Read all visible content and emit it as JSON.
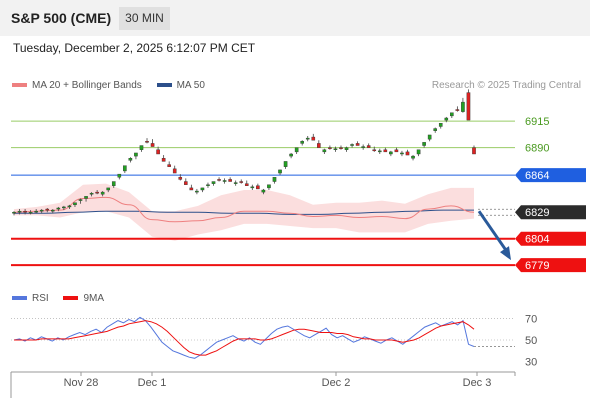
{
  "header": {
    "symbol": "S&P 500 (CME)",
    "timeframe": "30 MIN"
  },
  "datetime": "Tuesday, December 2, 2025 6:12:07 PM CET",
  "credit": "Research © 2025 Trading Central",
  "legend": [
    {
      "label": "MA 20 + Bollinger Bands",
      "color": "#ee8080"
    },
    {
      "label": "MA 50",
      "color": "#2c4f8a"
    }
  ],
  "rsi_legend": [
    {
      "label": "RSI",
      "color": "#5577dd"
    },
    {
      "label": "9MA",
      "color": "#ee1111"
    }
  ],
  "colors": {
    "up": "#22a022",
    "down": "#dd2222",
    "resistance": "#1f5fe0",
    "support": "#ee1111",
    "target_line": "#99cc66",
    "target_label": "#4a9a20",
    "arrow": "#2a5a9a",
    "band_fill": "#fbdede",
    "current": "#2b2b2b"
  },
  "chart_data": [
    {
      "type": "candlestick",
      "x_ticks": [
        "Nov 28",
        "Dec 1",
        "Dec 2",
        "Dec 3"
      ],
      "ylim": [
        6765,
        6935
      ],
      "levels": [
        {
          "label": "6915",
          "value": 6915,
          "kind": "target"
        },
        {
          "label": "6890",
          "value": 6890,
          "kind": "target"
        },
        {
          "label": "6864",
          "value": 6864,
          "kind": "resistance"
        },
        {
          "label": "6829",
          "value": 6829,
          "kind": "current"
        },
        {
          "label": "6804",
          "value": 6804,
          "kind": "support"
        },
        {
          "label": "6779",
          "value": 6779,
          "kind": "support"
        }
      ],
      "close_start": 6828,
      "ohlc_deltas": [
        [
          0,
          2,
          -2,
          1
        ],
        [
          1,
          3,
          -2,
          0
        ],
        [
          0,
          2,
          -3,
          -1
        ],
        [
          -1,
          2,
          -2,
          1
        ],
        [
          1,
          3,
          -1,
          0
        ],
        [
          0,
          2,
          -2,
          1
        ],
        [
          1,
          2,
          -2,
          -1
        ],
        [
          -1,
          1,
          -3,
          1
        ],
        [
          1,
          3,
          -1,
          1
        ],
        [
          1,
          2,
          -2,
          0
        ],
        [
          0,
          2,
          -2,
          1
        ],
        [
          1,
          3,
          -1,
          2
        ],
        [
          2,
          4,
          -1,
          1
        ],
        [
          1,
          3,
          -2,
          2
        ],
        [
          2,
          4,
          0,
          1
        ],
        [
          1,
          3,
          -1,
          -1
        ],
        [
          -1,
          2,
          -3,
          2
        ],
        [
          2,
          4,
          0,
          2
        ],
        [
          2,
          5,
          0,
          4
        ],
        [
          4,
          7,
          2,
          3
        ],
        [
          3,
          6,
          1,
          5
        ],
        [
          5,
          8,
          3,
          2
        ],
        [
          2,
          5,
          -1,
          3
        ],
        [
          3,
          6,
          1,
          4
        ],
        [
          4,
          7,
          2,
          -1
        ],
        [
          -1,
          3,
          -3,
          -3
        ],
        [
          -3,
          0,
          -6,
          -4
        ],
        [
          -4,
          -1,
          -7,
          -3
        ],
        [
          -3,
          0,
          -5,
          -2
        ],
        [
          -2,
          1,
          -4,
          -4
        ],
        [
          -4,
          -1,
          -7,
          -2
        ],
        [
          -2,
          1,
          -4,
          -3
        ],
        [
          -3,
          0,
          -5,
          -2
        ],
        [
          -2,
          1,
          -4,
          1
        ],
        [
          1,
          3,
          -1,
          2
        ],
        [
          2,
          5,
          0,
          1
        ],
        [
          1,
          3,
          -1,
          2
        ],
        [
          2,
          4,
          0,
          -1
        ],
        [
          -1,
          2,
          -3,
          1
        ],
        [
          1,
          3,
          -1,
          -2
        ],
        [
          -2,
          1,
          -4,
          1
        ],
        [
          1,
          3,
          -1,
          -1
        ],
        [
          -1,
          2,
          -3,
          -2
        ],
        [
          -2,
          1,
          -4,
          1
        ],
        [
          1,
          3,
          -2,
          -3
        ],
        [
          -3,
          0,
          -5,
          2
        ],
        [
          2,
          5,
          0,
          3
        ],
        [
          3,
          6,
          1,
          4
        ],
        [
          4,
          7,
          2,
          3
        ],
        [
          3,
          6,
          1,
          5
        ],
        [
          5,
          8,
          3,
          2
        ],
        [
          2,
          5,
          0,
          4
        ],
        [
          4,
          7,
          2,
          2
        ],
        [
          2,
          5,
          0,
          1
        ],
        [
          1,
          4,
          -1,
          -3
        ],
        [
          -3,
          0,
          -6,
          -4
        ],
        [
          -4,
          -1,
          -6,
          2
        ],
        [
          2,
          4,
          0,
          -1
        ],
        [
          -1,
          2,
          -3,
          1
        ],
        [
          1,
          3,
          -1,
          -1
        ],
        [
          -1,
          2,
          -3,
          2
        ],
        [
          2,
          4,
          0,
          1
        ],
        [
          1,
          3,
          -1,
          -2
        ],
        [
          -2,
          1,
          -4,
          1
        ],
        [
          1,
          3,
          -1,
          -2
        ],
        [
          -2,
          1,
          -4,
          -1
        ],
        [
          -1,
          2,
          -3,
          1
        ],
        [
          1,
          3,
          -1,
          -2
        ],
        [
          -2,
          1,
          -4,
          2
        ],
        [
          2,
          4,
          0,
          -2
        ],
        [
          -2,
          1,
          -4,
          1
        ],
        [
          1,
          3,
          -1,
          -3
        ],
        [
          -3,
          0,
          -5,
          2
        ],
        [
          2,
          5,
          0,
          4
        ],
        [
          4,
          7,
          2,
          3
        ],
        [
          3,
          6,
          1,
          4
        ],
        [
          4,
          7,
          2,
          2
        ],
        [
          2,
          5,
          0,
          3
        ],
        [
          3,
          6,
          1,
          2
        ],
        [
          2,
          5,
          0,
          3
        ],
        [
          3,
          6,
          1,
          -1
        ],
        [
          -1,
          12,
          -2,
          9
        ],
        [
          9,
          12,
          6,
          -26
        ],
        [
          -26,
          -24,
          -32,
          -6
        ]
      ],
      "ma20_samples": [
        6829,
        6830,
        6831,
        6842,
        6843,
        6836,
        6822,
        6820,
        6821,
        6824,
        6830,
        6830,
        6828,
        6825,
        6826,
        6824,
        6825,
        6823,
        6832,
        6835,
        6829
      ],
      "ma50_samples": [
        6828,
        6828,
        6829,
        6830,
        6830,
        6829,
        6829,
        6828,
        6828,
        6827,
        6827,
        6828,
        6829,
        6830,
        6831,
        6831
      ],
      "band_upper": [
        6832,
        6834,
        6838,
        6855,
        6856,
        6848,
        6830,
        6830,
        6835,
        6845,
        6850,
        6850,
        6845,
        6836,
        6838,
        6838,
        6840,
        6837,
        6846,
        6852,
        6852
      ],
      "band_lower": [
        6826,
        6826,
        6824,
        6829,
        6830,
        6824,
        6806,
        6802,
        6808,
        6812,
        6818,
        6818,
        6816,
        6814,
        6814,
        6810,
        6810,
        6810,
        6818,
        6821,
        6823
      ],
      "forecast_from": 6830,
      "forecast_to": 6779
    },
    {
      "type": "line",
      "title": "RSI",
      "y_ticks": [
        70,
        50,
        30
      ],
      "ylim": [
        24,
        76
      ],
      "rsi_series": [
        50,
        51,
        49,
        52,
        50,
        53,
        51,
        49,
        52,
        50,
        53,
        55,
        57,
        55,
        58,
        60,
        57,
        62,
        65,
        68,
        66,
        69,
        67,
        71,
        68,
        62,
        55,
        48,
        44,
        40,
        38,
        36,
        34,
        33,
        36,
        40,
        44,
        48,
        50,
        52,
        54,
        51,
        49,
        52,
        48,
        46,
        51,
        56,
        60,
        62,
        63,
        60,
        57,
        54,
        52,
        55,
        58,
        61,
        55,
        52,
        54,
        51,
        48,
        50,
        53,
        51,
        49,
        47,
        50,
        52,
        49,
        46,
        50,
        54,
        58,
        62,
        64,
        66,
        63,
        65,
        67,
        64,
        68,
        46,
        44
      ],
      "ma9_series": [
        50,
        50,
        50,
        50,
        50,
        51,
        51,
        51,
        51,
        51,
        51,
        52,
        53,
        54,
        55,
        56,
        57,
        58,
        60,
        62,
        63,
        65,
        66,
        67,
        68,
        67,
        65,
        62,
        58,
        53,
        48,
        43,
        39,
        37,
        36,
        36,
        38,
        40,
        43,
        46,
        49,
        51,
        51,
        51,
        51,
        50,
        50,
        51,
        53,
        55,
        57,
        59,
        60,
        60,
        59,
        58,
        57,
        57,
        57,
        56,
        56,
        55,
        53,
        52,
        51,
        51,
        50,
        50,
        50,
        50,
        49,
        48,
        49,
        50,
        52,
        55,
        58,
        61,
        63,
        64,
        65,
        66,
        67,
        64,
        60
      ]
    }
  ]
}
